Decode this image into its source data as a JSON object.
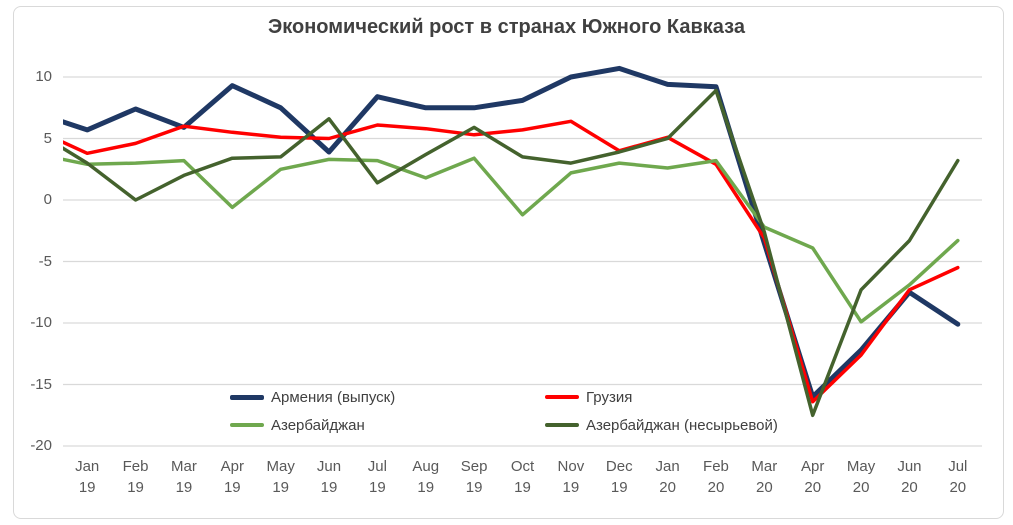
{
  "title": "Экономический рост в странах Южного Кавказа",
  "palette": {
    "grid_color": "#D9D9D9",
    "border_color": "#D9D9D9",
    "title_color": "#404040",
    "axis_label_color": "#595959",
    "legend_text_color": "#404040",
    "background": "#FFFFFF"
  },
  "chart_data": {
    "type": "line",
    "title": "Экономический рост в странах Южного Кавказа",
    "xlabel": "",
    "ylabel": "",
    "categories": [
      "Jan 19",
      "Feb 19",
      "Mar 19",
      "Apr 19",
      "May 19",
      "Jun 19",
      "Jul 19",
      "Aug 19",
      "Sep 19",
      "Oct 19",
      "Nov 19",
      "Dec 19",
      "Jan 20",
      "Feb 20",
      "Mar 20",
      "Apr 20",
      "May 20",
      "Jun 20",
      "Jul 20"
    ],
    "y_ticks": [
      10,
      5,
      0,
      -5,
      -10,
      -15,
      -20
    ],
    "ylim": [
      -20,
      11.2
    ],
    "grid": "horizontal-only",
    "legend_position": "inside-bottom-two-columns",
    "series": [
      {
        "name": "Армения (выпуск)",
        "color": "#1F3864",
        "stroke_width": 5,
        "values": [
          5.7,
          7.4,
          5.9,
          9.3,
          7.5,
          3.9,
          8.4,
          7.5,
          7.5,
          8.1,
          10.0,
          10.7,
          9.4,
          9.2,
          -3.5,
          -16.0,
          -12.2,
          -7.5,
          -10.1
        ],
        "clipped_lead_value": 7.0
      },
      {
        "name": "Грузия",
        "color": "#FF0000",
        "stroke_width": 3.5,
        "values": [
          3.8,
          4.6,
          6.0,
          5.5,
          5.1,
          5.0,
          6.1,
          5.8,
          5.3,
          5.7,
          6.4,
          4.0,
          5.1,
          2.9,
          -3.1,
          -16.4,
          -12.6,
          -7.3,
          -5.5
        ],
        "clipped_lead_value": 5.6
      },
      {
        "name": "Азербайджан",
        "color": "#6FA84E",
        "stroke_width": 3.5,
        "values": [
          2.9,
          3.0,
          3.2,
          -0.6,
          2.5,
          3.3,
          3.2,
          1.8,
          3.4,
          -1.2,
          2.2,
          3.0,
          2.6,
          3.2,
          -2.2,
          -3.9,
          -9.9,
          -6.9,
          -3.3
        ],
        "clipped_lead_value": 3.7
      },
      {
        "name": "Азербайджан (несырьевой)",
        "color": "#44622D",
        "stroke_width": 3.5,
        "values": [
          3.0,
          0.0,
          2.0,
          3.4,
          3.5,
          6.6,
          1.4,
          3.7,
          5.9,
          3.5,
          3.0,
          3.9,
          5.0,
          8.9,
          -2.6,
          -17.5,
          -7.3,
          -3.3,
          3.2
        ],
        "clipped_lead_value": 5.4
      }
    ]
  }
}
